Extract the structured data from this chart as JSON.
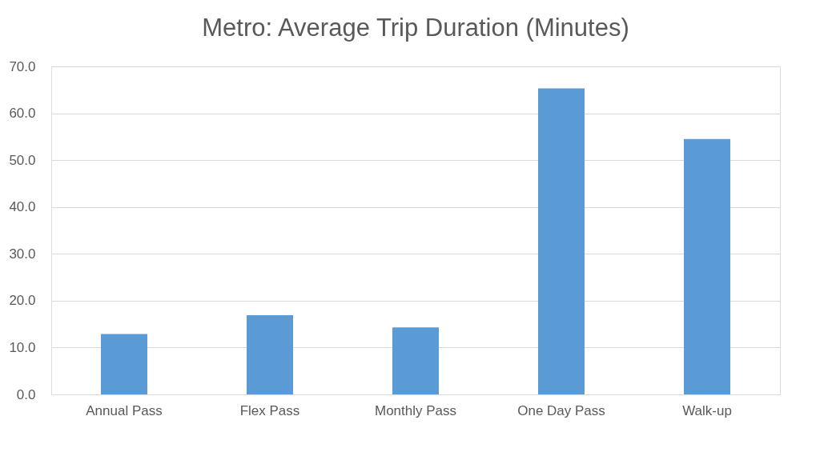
{
  "chart_data": {
    "type": "bar",
    "title": "Metro: Average Trip Duration (Minutes)",
    "categories": [
      "Annual Pass",
      "Flex Pass",
      "Monthly Pass",
      "One Day Pass",
      "Walk-up"
    ],
    "values": [
      12.9,
      16.9,
      14.3,
      65.3,
      54.5
    ],
    "color": "#5b9bd5",
    "ylim": [
      0,
      70
    ],
    "yticks": [
      {
        "value": 0,
        "label": "0.0"
      },
      {
        "value": 10,
        "label": "10.0"
      },
      {
        "value": 20,
        "label": "20.0"
      },
      {
        "value": 30,
        "label": "30.0"
      },
      {
        "value": 40,
        "label": "40.0"
      },
      {
        "value": 50,
        "label": "50.0"
      },
      {
        "value": 60,
        "label": "60.0"
      },
      {
        "value": 70,
        "label": "70.0"
      }
    ],
    "grid": "y"
  }
}
